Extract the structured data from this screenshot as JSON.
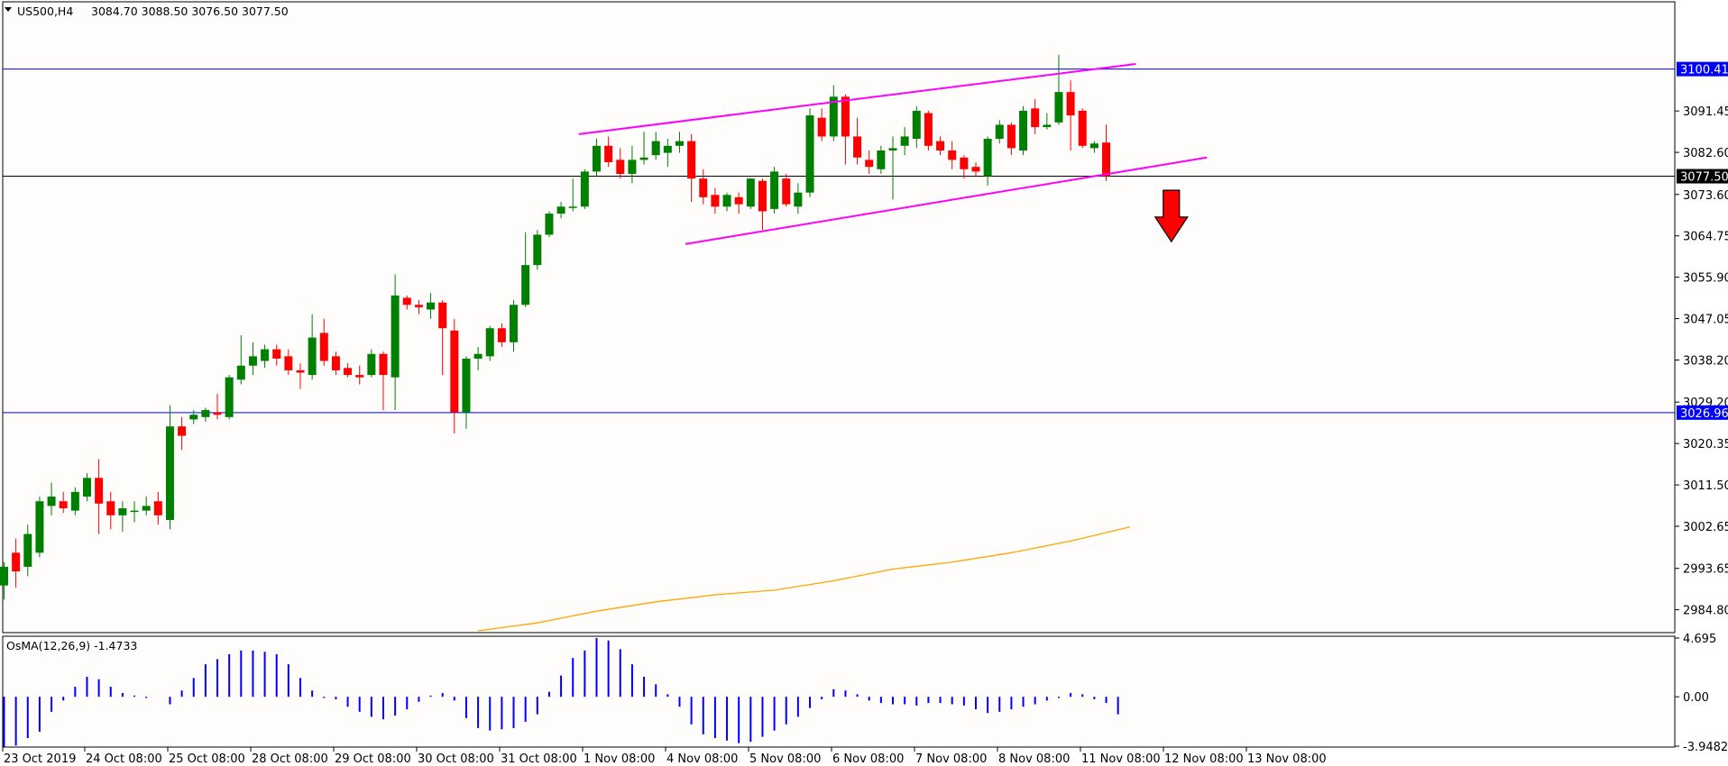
{
  "header": {
    "symbol_label": "US500,H4",
    "ohlc": "3084.70 3088.50 3076.50 3077.50"
  },
  "indicator": {
    "label": "OsMA(12,26,9) -1.4733"
  },
  "colors": {
    "background": "#fffcfc",
    "bull": "#008000",
    "bear": "#ff0000",
    "channel": "#ff00ff",
    "hline": "#0000ff",
    "ma": "#ffa500",
    "osma": "#0000ff",
    "price_line": "#000000",
    "arrow": "#ff0000"
  },
  "chart_data": [
    {
      "type": "candlestick",
      "symbol": "US500",
      "timeframe": "H4",
      "ylim": [
        2980.3,
        3114.6
      ],
      "price_axis_ticks": [
        "3091.45",
        "3082.60",
        "3073.60",
        "3064.75",
        "3055.90",
        "3047.05",
        "3038.20",
        "3029.20",
        "3020.35",
        "3011.50",
        "3002.65",
        "2993.65",
        "2984.80"
      ],
      "time_axis_labels": [
        "23 Oct 2019",
        "24 Oct 08:00",
        "25 Oct 08:00",
        "28 Oct 08:00",
        "29 Oct 08:00",
        "30 Oct 08:00",
        "31 Oct 08:00",
        "1 Nov 08:00",
        "4 Nov 08:00",
        "5 Nov 08:00",
        "6 Nov 08:00",
        "7 Nov 08:00",
        "8 Nov 08:00",
        "11 Nov 08:00",
        "12 Nov 08:00",
        "13 Nov 08:00"
      ],
      "candles": [
        {
          "o": 2990.0,
          "h": 2995.0,
          "l": 2987.0,
          "c": 2994.0
        },
        {
          "o": 2997.0,
          "h": 3000.0,
          "l": 2989.5,
          "c": 2993.0
        },
        {
          "o": 2994.0,
          "h": 3003.0,
          "l": 2992.0,
          "c": 3001.0
        },
        {
          "o": 2997.0,
          "h": 3009.0,
          "l": 2996.0,
          "c": 3008.0
        },
        {
          "o": 3007.0,
          "h": 3012.0,
          "l": 3005.0,
          "c": 3009.0
        },
        {
          "o": 3008.0,
          "h": 3010.0,
          "l": 3005.5,
          "c": 3006.5
        },
        {
          "o": 3006.0,
          "h": 3011.0,
          "l": 3005.0,
          "c": 3010.0
        },
        {
          "o": 3009.0,
          "h": 3014.0,
          "l": 3008.0,
          "c": 3013.0
        },
        {
          "o": 3013.0,
          "h": 3017.0,
          "l": 3001.0,
          "c": 3007.5
        },
        {
          "o": 3008.0,
          "h": 3010.0,
          "l": 3002.0,
          "c": 3005.0
        },
        {
          "o": 3005.0,
          "h": 3008.0,
          "l": 3001.5,
          "c": 3006.5
        },
        {
          "o": 3006.0,
          "h": 3008.0,
          "l": 3003.5,
          "c": 3006.0
        },
        {
          "o": 3006.0,
          "h": 3009.0,
          "l": 3005.0,
          "c": 3007.0
        },
        {
          "o": 3008.0,
          "h": 3010.0,
          "l": 3003.0,
          "c": 3005.0
        },
        {
          "o": 3004.0,
          "h": 3028.5,
          "l": 3002.0,
          "c": 3024.0
        },
        {
          "o": 3024.0,
          "h": 3026.0,
          "l": 3019.0,
          "c": 3022.0
        },
        {
          "o": 3025.5,
          "h": 3027.5,
          "l": 3024.5,
          "c": 3026.5
        },
        {
          "o": 3026.0,
          "h": 3028.0,
          "l": 3025.0,
          "c": 3027.5
        },
        {
          "o": 3027.0,
          "h": 3031.0,
          "l": 3025.5,
          "c": 3026.5
        },
        {
          "o": 3026.0,
          "h": 3035.0,
          "l": 3025.5,
          "c": 3034.5
        },
        {
          "o": 3034.0,
          "h": 3043.5,
          "l": 3033.0,
          "c": 3037.0
        },
        {
          "o": 3037.0,
          "h": 3042.0,
          "l": 3035.0,
          "c": 3039.0
        },
        {
          "o": 3038.0,
          "h": 3041.5,
          "l": 3036.5,
          "c": 3040.5
        },
        {
          "o": 3040.5,
          "h": 3041.5,
          "l": 3037.0,
          "c": 3038.5
        },
        {
          "o": 3039.0,
          "h": 3040.5,
          "l": 3035.0,
          "c": 3036.0
        },
        {
          "o": 3036.0,
          "h": 3037.5,
          "l": 3032.0,
          "c": 3035.5
        },
        {
          "o": 3035.0,
          "h": 3048.0,
          "l": 3034.0,
          "c": 3043.0
        },
        {
          "o": 3044.0,
          "h": 3047.0,
          "l": 3037.0,
          "c": 3038.0
        },
        {
          "o": 3039.0,
          "h": 3040.0,
          "l": 3035.0,
          "c": 3036.0
        },
        {
          "o": 3036.5,
          "h": 3037.5,
          "l": 3034.5,
          "c": 3035.0
        },
        {
          "o": 3035.0,
          "h": 3037.0,
          "l": 3033.0,
          "c": 3034.5
        },
        {
          "o": 3035.0,
          "h": 3040.5,
          "l": 3034.5,
          "c": 3039.5
        },
        {
          "o": 3039.5,
          "h": 3040.0,
          "l": 3027.5,
          "c": 3035.0
        },
        {
          "o": 3034.5,
          "h": 3056.5,
          "l": 3027.5,
          "c": 3052.0
        },
        {
          "o": 3051.5,
          "h": 3052.0,
          "l": 3049.0,
          "c": 3050.0
        },
        {
          "o": 3050.0,
          "h": 3051.0,
          "l": 3048.0,
          "c": 3049.5
        },
        {
          "o": 3049.0,
          "h": 3052.5,
          "l": 3047.0,
          "c": 3050.5
        },
        {
          "o": 3050.5,
          "h": 3051.0,
          "l": 3035.0,
          "c": 3045.0
        },
        {
          "o": 3044.5,
          "h": 3047.0,
          "l": 3022.5,
          "c": 3027.0
        },
        {
          "o": 3027.0,
          "h": 3039.0,
          "l": 3023.5,
          "c": 3038.5
        },
        {
          "o": 3038.5,
          "h": 3041.0,
          "l": 3036.0,
          "c": 3039.5
        },
        {
          "o": 3039.0,
          "h": 3045.5,
          "l": 3038.0,
          "c": 3045.0
        },
        {
          "o": 3045.0,
          "h": 3046.0,
          "l": 3041.0,
          "c": 3042.0
        },
        {
          "o": 3042.0,
          "h": 3051.0,
          "l": 3040.0,
          "c": 3050.0
        },
        {
          "o": 3050.0,
          "h": 3065.5,
          "l": 3049.5,
          "c": 3058.5
        },
        {
          "o": 3058.5,
          "h": 3066.0,
          "l": 3057.5,
          "c": 3065.0
        },
        {
          "o": 3065.0,
          "h": 3070.0,
          "l": 3064.5,
          "c": 3069.5
        },
        {
          "o": 3069.5,
          "h": 3072.0,
          "l": 3068.5,
          "c": 3071.0
        },
        {
          "o": 3071.0,
          "h": 3077.0,
          "l": 3070.0,
          "c": 3071.0
        },
        {
          "o": 3071.0,
          "h": 3079.0,
          "l": 3070.5,
          "c": 3078.5
        },
        {
          "o": 3078.5,
          "h": 3085.5,
          "l": 3077.5,
          "c": 3084.0
        },
        {
          "o": 3084.0,
          "h": 3086.0,
          "l": 3079.5,
          "c": 3080.5
        },
        {
          "o": 3081.0,
          "h": 3083.5,
          "l": 3077.0,
          "c": 3078.0
        },
        {
          "o": 3078.0,
          "h": 3084.0,
          "l": 3076.0,
          "c": 3081.0
        },
        {
          "o": 3081.0,
          "h": 3087.0,
          "l": 3080.0,
          "c": 3081.5
        },
        {
          "o": 3082.0,
          "h": 3087.0,
          "l": 3081.0,
          "c": 3085.0
        },
        {
          "o": 3082.5,
          "h": 3085.5,
          "l": 3079.5,
          "c": 3084.0
        },
        {
          "o": 3084.0,
          "h": 3087.0,
          "l": 3082.5,
          "c": 3085.0
        },
        {
          "o": 3085.0,
          "h": 3086.5,
          "l": 3072.0,
          "c": 3077.0
        },
        {
          "o": 3077.0,
          "h": 3079.0,
          "l": 3071.5,
          "c": 3073.0
        },
        {
          "o": 3073.5,
          "h": 3075.0,
          "l": 3069.5,
          "c": 3071.0
        },
        {
          "o": 3071.0,
          "h": 3074.0,
          "l": 3070.0,
          "c": 3073.5
        },
        {
          "o": 3073.0,
          "h": 3074.0,
          "l": 3069.5,
          "c": 3071.5
        },
        {
          "o": 3071.0,
          "h": 3077.0,
          "l": 3070.5,
          "c": 3077.0
        },
        {
          "o": 3076.5,
          "h": 3077.0,
          "l": 3066.0,
          "c": 3070.0
        },
        {
          "o": 3070.5,
          "h": 3079.5,
          "l": 3069.5,
          "c": 3078.5
        },
        {
          "o": 3077.0,
          "h": 3078.0,
          "l": 3071.0,
          "c": 3071.5
        },
        {
          "o": 3071.0,
          "h": 3076.0,
          "l": 3069.5,
          "c": 3074.0
        },
        {
          "o": 3074.0,
          "h": 3092.0,
          "l": 3073.0,
          "c": 3090.5
        },
        {
          "o": 3090.0,
          "h": 3092.0,
          "l": 3085.0,
          "c": 3086.0
        },
        {
          "o": 3086.0,
          "h": 3097.0,
          "l": 3085.0,
          "c": 3094.5
        },
        {
          "o": 3094.5,
          "h": 3095.0,
          "l": 3080.0,
          "c": 3086.0
        },
        {
          "o": 3086.0,
          "h": 3090.0,
          "l": 3080.0,
          "c": 3081.5
        },
        {
          "o": 3081.0,
          "h": 3083.0,
          "l": 3078.0,
          "c": 3079.5
        },
        {
          "o": 3079.0,
          "h": 3084.0,
          "l": 3078.0,
          "c": 3083.0
        },
        {
          "o": 3083.0,
          "h": 3086.0,
          "l": 3072.5,
          "c": 3083.5
        },
        {
          "o": 3084.0,
          "h": 3088.0,
          "l": 3082.0,
          "c": 3086.0
        },
        {
          "o": 3085.5,
          "h": 3092.5,
          "l": 3083.5,
          "c": 3091.5
        },
        {
          "o": 3091.0,
          "h": 3091.5,
          "l": 3083.0,
          "c": 3084.0
        },
        {
          "o": 3085.0,
          "h": 3086.0,
          "l": 3082.0,
          "c": 3083.0
        },
        {
          "o": 3083.0,
          "h": 3085.0,
          "l": 3079.0,
          "c": 3081.0
        },
        {
          "o": 3081.5,
          "h": 3082.0,
          "l": 3077.0,
          "c": 3079.0
        },
        {
          "o": 3079.5,
          "h": 3080.5,
          "l": 3077.5,
          "c": 3078.5
        },
        {
          "o": 3077.5,
          "h": 3086.0,
          "l": 3075.5,
          "c": 3085.5
        },
        {
          "o": 3085.5,
          "h": 3089.5,
          "l": 3084.5,
          "c": 3088.5
        },
        {
          "o": 3088.5,
          "h": 3089.0,
          "l": 3082.0,
          "c": 3083.5
        },
        {
          "o": 3083.0,
          "h": 3092.5,
          "l": 3082.0,
          "c": 3091.5
        },
        {
          "o": 3092.0,
          "h": 3094.0,
          "l": 3086.5,
          "c": 3088.0
        },
        {
          "o": 3088.0,
          "h": 3091.0,
          "l": 3087.5,
          "c": 3088.5
        },
        {
          "o": 3089.0,
          "h": 3103.5,
          "l": 3088.5,
          "c": 3095.5
        },
        {
          "o": 3095.5,
          "h": 3098.0,
          "l": 3083.0,
          "c": 3090.5
        },
        {
          "o": 3091.5,
          "h": 3092.0,
          "l": 3083.5,
          "c": 3084.0
        },
        {
          "o": 3083.5,
          "h": 3085.0,
          "l": 3082.5,
          "c": 3084.5
        },
        {
          "o": 3084.7,
          "h": 3088.5,
          "l": 3076.5,
          "c": 3077.5
        }
      ],
      "horizontal_lines": [
        {
          "value": 3100.41,
          "label": "3100.41",
          "color": "#0000ff"
        },
        {
          "value": 3026.96,
          "label": "3026.96",
          "color": "#0000ff"
        }
      ],
      "current_price": {
        "value": 3077.5,
        "label": "3077.50"
      },
      "moving_average": [
        {
          "x": 40,
          "y": 2980.3
        },
        {
          "x": 45,
          "y": 2982.0
        },
        {
          "x": 50,
          "y": 2984.5
        },
        {
          "x": 55,
          "y": 2986.5
        },
        {
          "x": 60,
          "y": 2988.0
        },
        {
          "x": 65,
          "y": 2989.0
        },
        {
          "x": 70,
          "y": 2991.0
        },
        {
          "x": 75,
          "y": 2993.5
        },
        {
          "x": 80,
          "y": 2995.0
        },
        {
          "x": 85,
          "y": 2997.0
        },
        {
          "x": 90,
          "y": 2999.5
        },
        {
          "x": 95,
          "y": 3002.5
        }
      ],
      "channel_lines": [
        {
          "x1": 48.5,
          "y1": 3086.5,
          "x2": 95.5,
          "y2": 3101.5
        },
        {
          "x1": 57.5,
          "y1": 3063.0,
          "x2": 101.5,
          "y2": 3081.5
        }
      ],
      "arrow": {
        "direction": "down",
        "x": 98.5,
        "y_top": 3074.5,
        "y_bottom": 3063.5
      }
    },
    {
      "type": "bar",
      "name": "OsMA(12,26,9)",
      "ylim": [
        -3.9482,
        4.695
      ],
      "axis_ticks": [
        "4.695",
        "0.00",
        "-3.9482"
      ],
      "values": [
        -4.0,
        -3.9,
        -3.3,
        -2.8,
        -1.2,
        -0.3,
        0.8,
        1.6,
        1.4,
        0.8,
        0.3,
        0.1,
        -0.1,
        0.0,
        -0.6,
        0.5,
        1.5,
        2.6,
        3.0,
        3.4,
        3.7,
        3.7,
        3.6,
        3.4,
        2.6,
        1.5,
        0.5,
        -0.1,
        -0.2,
        -0.8,
        -1.2,
        -1.6,
        -1.8,
        -1.5,
        -1.0,
        -0.4,
        0.1,
        0.3,
        -0.3,
        -1.7,
        -2.5,
        -2.7,
        -2.6,
        -2.5,
        -2.0,
        -1.4,
        0.4,
        1.7,
        3.1,
        3.7,
        4.7,
        4.5,
        3.8,
        2.6,
        1.6,
        1.0,
        0.2,
        -0.8,
        -2.2,
        -3.0,
        -3.3,
        -3.5,
        -3.7,
        -3.6,
        -3.2,
        -2.7,
        -2.2,
        -1.6,
        -0.9,
        -0.2,
        0.6,
        0.5,
        0.2,
        -0.3,
        -0.5,
        -0.6,
        -0.6,
        -0.7,
        -0.5,
        -0.5,
        -0.6,
        -0.7,
        -1.0,
        -1.3,
        -1.2,
        -1.0,
        -0.8,
        -0.6,
        -0.3,
        -0.1,
        0.3,
        0.2,
        -0.2,
        -0.5,
        -1.4
      ]
    }
  ]
}
